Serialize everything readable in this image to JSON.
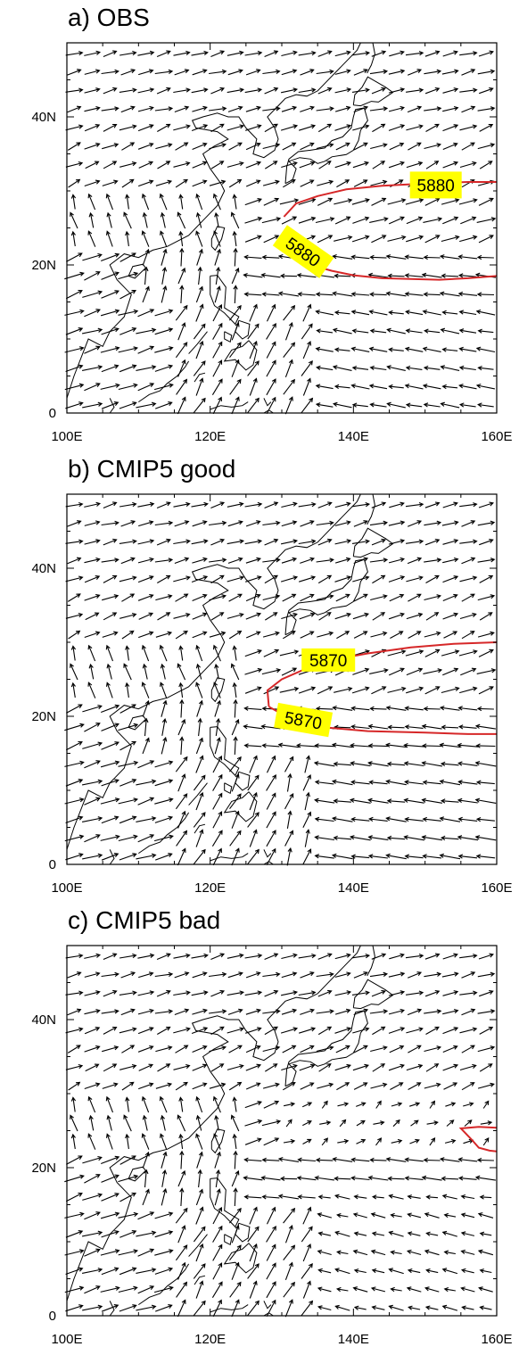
{
  "panels": [
    {
      "id": "a",
      "title": "a) OBS",
      "contour_value": "5880",
      "contour_labels": [
        "5880",
        "5880"
      ],
      "contour_color": "#d62728",
      "extent": {
        "lon": [
          100,
          160
        ],
        "lat": [
          0,
          50
        ]
      }
    },
    {
      "id": "b",
      "title": "b) CMIP5 good",
      "contour_value": "5870",
      "contour_labels": [
        "5870",
        "5870"
      ],
      "contour_color": "#d62728",
      "extent": {
        "lon": [
          100,
          160
        ],
        "lat": [
          0,
          50
        ]
      }
    },
    {
      "id": "c",
      "title": "c) CMIP5 bad",
      "contour_value": "",
      "contour_labels": [],
      "contour_color": "#d62728",
      "extent": {
        "lon": [
          100,
          160
        ],
        "lat": [
          0,
          50
        ]
      }
    }
  ],
  "x_tick_labels": [
    "100E",
    "120E",
    "140E",
    "160E"
  ],
  "y_tick_labels": [
    "0",
    "20N",
    "40N"
  ],
  "label_highlight_color": "#ffff00",
  "vector_color": "#000000",
  "coastline_color": "#000000"
}
